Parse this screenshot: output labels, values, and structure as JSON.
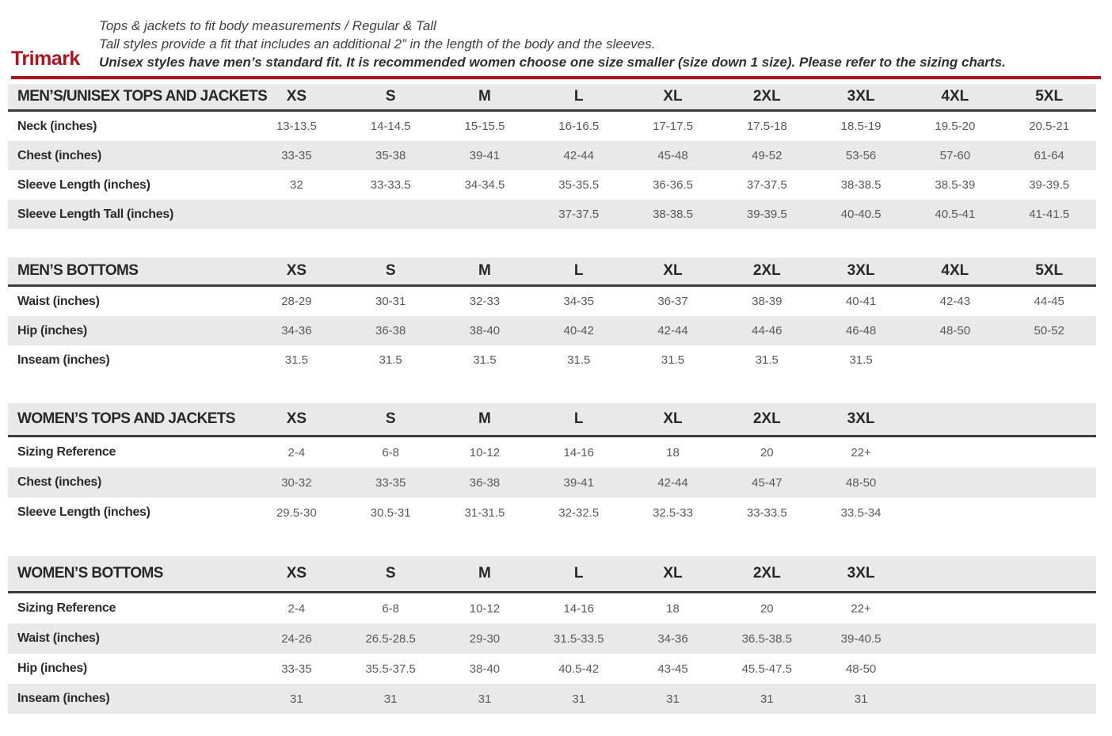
{
  "header": {
    "brand": "Trimark",
    "line1": "Tops & jackets to fit body measurements / Regular & Tall",
    "line2": "Tall styles provide a fit that includes an additional 2” in the length of the body and the sleeves.",
    "line3": "Unisex styles have men’s standard fit. It is recommended women choose one size smaller (size down 1 size).  Please refer to the sizing charts.",
    "accent_color": "#b5121c"
  },
  "tables": [
    {
      "title": "MEN’S/UNISEX TOPS AND JACKETS",
      "sizes": [
        "XS",
        "S",
        "M",
        "L",
        "XL",
        "2XL",
        "3XL",
        "4XL",
        "5XL"
      ],
      "rows": [
        {
          "label": "Neck (inches)",
          "values": [
            "13-13.5",
            "14-14.5",
            "15-15.5",
            "16-16.5",
            "17-17.5",
            "17.5-18",
            "18.5-19",
            "19.5-20",
            "20.5-21"
          ]
        },
        {
          "label": "Chest (inches)",
          "values": [
            "33-35",
            "35-38",
            "39-41",
            "42-44",
            "45-48",
            "49-52",
            "53-56",
            "57-60",
            "61-64"
          ]
        },
        {
          "label": "Sleeve Length (inches)",
          "values": [
            "32",
            "33-33.5",
            "34-34.5",
            "35-35.5",
            "36-36.5",
            "37-37.5",
            "38-38.5",
            "38.5-39",
            "39-39.5"
          ]
        },
        {
          "label": "Sleeve Length Tall (inches)",
          "values": [
            "",
            "",
            "",
            "37-37.5",
            "38-38.5",
            "39-39.5",
            "40-40.5",
            "40.5-41",
            "41-41.5"
          ]
        }
      ]
    },
    {
      "title": "MEN’S BOTTOMS",
      "sizes": [
        "XS",
        "S",
        "M",
        "L",
        "XL",
        "2XL",
        "3XL",
        "4XL",
        "5XL"
      ],
      "rows": [
        {
          "label": "Waist (inches)",
          "values": [
            "28-29",
            "30-31",
            "32-33",
            "34-35",
            "36-37",
            "38-39",
            "40-41",
            "42-43",
            "44-45"
          ]
        },
        {
          "label": "Hip (inches)",
          "values": [
            "34-36",
            "36-38",
            "38-40",
            "40-42",
            "42-44",
            "44-46",
            "46-48",
            "48-50",
            "50-52"
          ]
        },
        {
          "label": "Inseam (inches)",
          "values": [
            "31.5",
            "31.5",
            "31.5",
            "31.5",
            "31.5",
            "31.5",
            "31.5",
            "",
            ""
          ]
        }
      ]
    },
    {
      "title": "WOMEN’S TOPS AND JACKETS",
      "sizes": [
        "XS",
        "S",
        "M",
        "L",
        "XL",
        "2XL",
        "3XL",
        "",
        ""
      ],
      "rows": [
        {
          "label": "Sizing Reference",
          "values": [
            "2-4",
            "6-8",
            "10-12",
            "14-16",
            "18",
            "20",
            "22+",
            "",
            ""
          ]
        },
        {
          "label": "Chest (inches)",
          "values": [
            "30-32",
            "33-35",
            "36-38",
            "39-41",
            "42-44",
            "45-47",
            "48-50",
            "",
            ""
          ]
        },
        {
          "label": "Sleeve Length (inches)",
          "values": [
            "29.5-30",
            "30.5-31",
            "31-31.5",
            "32-32.5",
            "32.5-33",
            "33-33.5",
            "33.5-34",
            "",
            ""
          ]
        }
      ]
    },
    {
      "title": "WOMEN’S BOTTOMS",
      "sizes": [
        "XS",
        "S",
        "M",
        "L",
        "XL",
        "2XL",
        "3XL",
        "",
        ""
      ],
      "rows": [
        {
          "label": "Sizing Reference",
          "values": [
            "2-4",
            "6-8",
            "10-12",
            "14-16",
            "18",
            "20",
            "22+",
            "",
            ""
          ]
        },
        {
          "label": "Waist (inches)",
          "values": [
            "24-26",
            "26.5-28.5",
            "29-30",
            "31.5-33.5",
            "34-36",
            "36.5-38.5",
            "39-40.5",
            "",
            ""
          ]
        },
        {
          "label": "Hip (inches)",
          "values": [
            "33-35",
            "35.5-37.5",
            "38-40",
            "40.5-42",
            "43-45",
            "45.5-47.5",
            "48-50",
            "",
            ""
          ]
        },
        {
          "label": "Inseam (inches)",
          "values": [
            "31",
            "31",
            "31",
            "31",
            "31",
            "31",
            "31",
            "",
            ""
          ]
        }
      ]
    }
  ]
}
